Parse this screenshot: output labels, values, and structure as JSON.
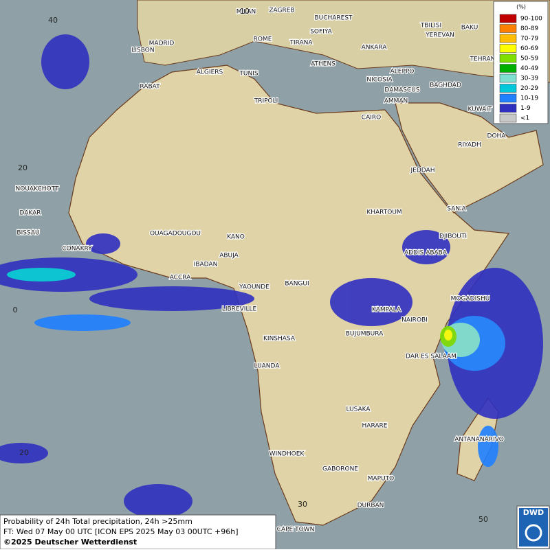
{
  "legend": {
    "title": "(%)",
    "items": [
      {
        "label": "90-100",
        "color": "#c00000"
      },
      {
        "label": "80-89",
        "color": "#ff7f00"
      },
      {
        "label": "70-79",
        "color": "#ffbf00"
      },
      {
        "label": "60-69",
        "color": "#ffff00"
      },
      {
        "label": "50-59",
        "color": "#7fdf00"
      },
      {
        "label": "40-49",
        "color": "#00b000"
      },
      {
        "label": "30-39",
        "color": "#7fe0d0"
      },
      {
        "label": "20-29",
        "color": "#00c8d8"
      },
      {
        "label": "10-19",
        "color": "#2080ff"
      },
      {
        "label": "1-9",
        "color": "#3030c0"
      },
      {
        "label": "<1",
        "color": "#c8c8c8"
      }
    ]
  },
  "cities": [
    "MILAN",
    "ZAGREB",
    "BUCHAREST",
    "TBILISI",
    "BAKU",
    "YEREVAN",
    "MADRID",
    "ROME",
    "SOFIYA",
    "TIRANA",
    "ANKARA",
    "LISBON",
    "TEHRAN",
    "ALGIERS",
    "TUNIS",
    "ATHENS",
    "ALEPPO",
    "RABAT",
    "NICOSIA",
    "BAGHDAD",
    "DAMASCUS",
    "TRIPOLI",
    "AMMAN",
    "KUWAIT",
    "CAIRO",
    "DOHA",
    "RIYADH",
    "JEDDAH",
    "NOUAKCHOTT",
    "KHARTOUM",
    "SAN'A",
    "DAKAR",
    "BISSAU",
    "OUAGADOUGOU",
    "KANO",
    "DJIBOUTI",
    "CONAKRY",
    "ABUJA",
    "ADDIS ABABA",
    "IBADAN",
    "ACCRA",
    "YAOUNDE",
    "BANGUI",
    "MOGADISHU",
    "LIBREVILLE",
    "KAMPALA",
    "NAIROBI",
    "BUJUMBURA",
    "KINSHASA",
    "DAR ES SALAAM",
    "LUANDA",
    "LUSAKA",
    "HARARE",
    "ANTANANARIVO",
    "WINDHOEK",
    "GABORONE",
    "MAPUTO",
    "DURBAN",
    "CAPE TOWN"
  ],
  "grid_labels": [
    "40",
    "10",
    "20",
    "0",
    "20",
    "30",
    "50"
  ],
  "footer": {
    "line1": "Probability of 24h Total precipitation, 24h >25mm",
    "line2": "FT: Wed 07 May 00 UTC [ICON EPS 2025 May 03 00UTC +96h]",
    "credit": "©2025 Deutscher Wetterdienst"
  },
  "logo": "DWD"
}
